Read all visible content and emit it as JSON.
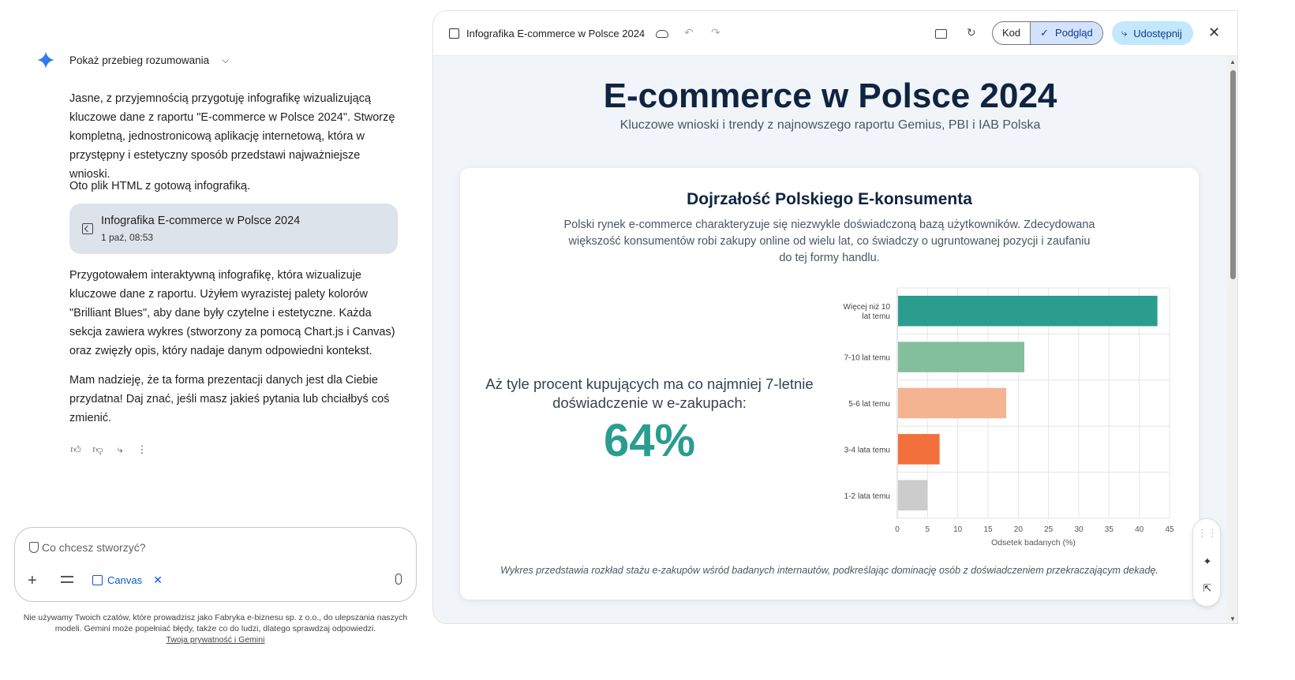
{
  "chat": {
    "reasoning_toggle": "Pokaż przebieg rozumowania",
    "messages": [
      "Jasne, z przyjemnością przygotuję infografikę wizualizującą kluczowe dane z raportu \"E-commerce w Polsce 2024\". Stworzę kompletną, jednostronicową aplikację internetową, która w przystępny i estetyczny sposób przedstawi najważniejsze wnioski.",
      "Oto plik HTML z gotową infografiką.",
      "Przygotowałem interaktywną infografikę, która wizualizuje kluczowe dane z raportu. Użyłem wyrazistej palety kolorów \"Brilliant Blues\", aby dane były czytelne i estetyczne. Każda sekcja zawiera wykres (stworzony za pomocą Chart.js i Canvas) oraz zwięzły opis, który nadaje danym odpowiedni kontekst.",
      "Mam nadzieję, że ta forma prezentacji danych jest dla Ciebie przydatna! Daj znać, jeśli masz jakieś pytania lub chciałbyś coś zmienić."
    ],
    "artifact": {
      "title": "Infografika E-commerce w Polsce 2024",
      "date": "1 paź, 08:53"
    },
    "composer": {
      "placeholder": "Co chcesz stworzyć?",
      "canvas_chip": "Canvas"
    },
    "disclaimer": "Nie używamy Twoich czatów, które prowadzisz jako Fabryka e-biznesu sp. z o.o., do ulepszania naszych modeli. Gemini może popełniać błędy, także co do ludzi, dlatego sprawdzaj odpowiedzi.",
    "privacy_link": "Twoja prywatność i Gemini"
  },
  "canvas": {
    "title": "Infografika E-commerce w Polsce 2024",
    "code_label": "Kod",
    "preview_label": "Podgląd",
    "share_label": "Udostępnij"
  },
  "infographic": {
    "title": "E-commerce w Polsce 2024",
    "subtitle": "Kluczowe wnioski i trendy z najnowszego raportu Gemius, PBI i IAB Polska",
    "section_title": "Dojrzałość Polskiego E-konsumenta",
    "section_desc": "Polski rynek e-commerce charakteryzuje się niezwykle doświadczoną bazą użytkowników. Zdecydowana większość konsumentów robi zakupy online od wielu lat, co świadczy o ugruntowanej pozycji i zaufaniu do tej formy handlu.",
    "stat_text": "Aż tyle procent kupujących ma co najmniej 7-letnie doświadczenie w e-zakupach:",
    "stat_value": "64%",
    "caption": "Wykres przedstawia rozkład stażu e-zakupów wśród badanych internautów, podkreślając dominację osób z doświadczeniem przekraczającym dekadę."
  },
  "chart_data": {
    "type": "bar",
    "orientation": "horizontal",
    "categories": [
      "Więcej niż 10 lat temu",
      "7-10 lat temu",
      "5-6 lat temu",
      "3-4 lata temu",
      "1-2 lata temu"
    ],
    "values": [
      43,
      21,
      18,
      7,
      5
    ],
    "colors": [
      "#2a9d8f",
      "#83bf9c",
      "#f4b491",
      "#f2703b",
      "#cccccc"
    ],
    "xlabel": "Odsetek badanych (%)",
    "ylabel": "",
    "xlim": [
      0,
      45
    ],
    "xticks": [
      0,
      5,
      10,
      15,
      20,
      25,
      30,
      35,
      40,
      45
    ],
    "grid": true,
    "legend": "none"
  }
}
